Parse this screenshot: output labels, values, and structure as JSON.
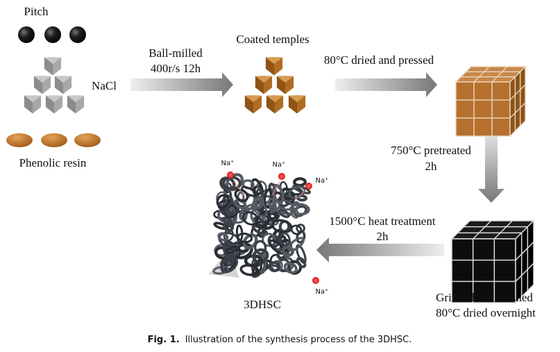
{
  "materials": {
    "pitch": "Pitch",
    "nacl": "NaCl",
    "phenolic_resin": "Phenolic resin"
  },
  "steps": [
    {
      "lines": [
        "Ball-milled",
        "400r/s 12h"
      ]
    },
    {
      "lines": [
        "80°C dried and pressed"
      ]
    },
    {
      "lines": [
        "750°C pretreated",
        "2h"
      ]
    },
    {
      "lines": [
        "1500°C heat treatment",
        "2h"
      ]
    }
  ],
  "intermediates": {
    "coated": "Coated temples",
    "washed": [
      "Grinded and washed",
      "80°C dried overnight"
    ],
    "product": "3DHSC"
  },
  "ions": [
    "Na⁺",
    "Na⁺",
    "Na⁺",
    "Na⁺"
  ],
  "caption": {
    "label": "Fig. 1.",
    "text": "Illustration of the synthesis process of the 3DHSC."
  }
}
